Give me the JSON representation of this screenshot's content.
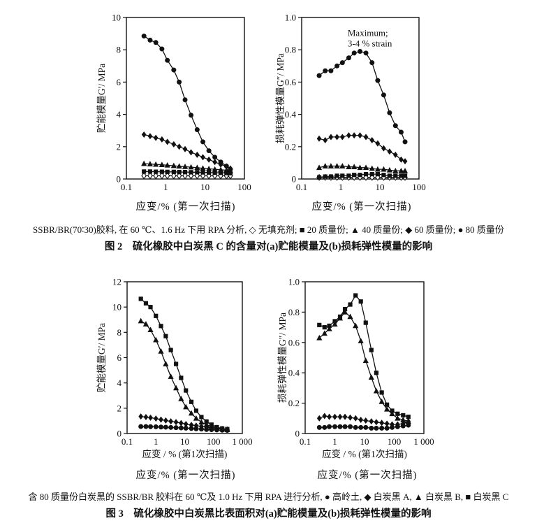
{
  "page": {
    "background": "#ffffff",
    "ink": "#111111"
  },
  "figure2": {
    "note": "SSBR/BR(70∶30)胶料, 在 60 ℃、1.6 Hz 下用 RPA 分析, ◇ 无填充剂;  ■ 20 质量份;  ▲ 40 质量份;  ◆ 60 质量份;  ● 80 质量份",
    "title": "图 2　硫化橡胶中白炭黑 C 的含量对(a)贮能模量及(b)损耗弹性模量的影响"
  },
  "figure3": {
    "note": "含 80 质量份白炭黑的 SSBR/BR 胶料在 60 ℃及 1.0 Hz 下用 RPA 进行分析, ● 高岭土, ◆ 白炭黑 A, ▲ 白炭黑 B, ■ 白炭黑 C",
    "title": "图 3　硫化橡胶中白炭黑比表面积对(a)贮能模量及(b)损耗弹性模量的影响"
  },
  "chart_data": [
    {
      "id": "fig2a",
      "type": "line",
      "xscale": "log",
      "ylabel": "贮能模量G′/ MPa",
      "xlabel": "应变/% (第一次扫描)",
      "xlim": [
        0.1,
        100
      ],
      "ylim": [
        0,
        10
      ],
      "xtick_values": [
        0.1,
        1,
        10,
        100
      ],
      "xtick_labels": [
        "0.1",
        "1",
        "10",
        "100"
      ],
      "ytick_values": [
        0,
        2,
        4,
        6,
        8,
        10
      ],
      "ytick_labels": [
        "0",
        "2",
        "4",
        "6",
        "8",
        "10"
      ],
      "grid": false,
      "x": [
        0.28,
        0.4,
        0.56,
        0.8,
        1.1,
        1.6,
        2.2,
        3.1,
        4.4,
        6.3,
        8.8,
        12.5,
        17.7,
        25,
        35,
        44
      ],
      "series": [
        {
          "name": "无填充剂",
          "marker": "open-diamond",
          "values": [
            0.2,
            0.2,
            0.2,
            0.2,
            0.2,
            0.2,
            0.2,
            0.2,
            0.2,
            0.2,
            0.2,
            0.2,
            0.2,
            0.2,
            0.2,
            0.2
          ]
        },
        {
          "name": "20质量份",
          "marker": "square",
          "values": [
            0.46,
            0.46,
            0.45,
            0.45,
            0.44,
            0.44,
            0.43,
            0.43,
            0.42,
            0.42,
            0.41,
            0.4,
            0.39,
            0.38,
            0.37,
            0.36
          ]
        },
        {
          "name": "40质量份",
          "marker": "triangle",
          "values": [
            0.95,
            0.93,
            0.9,
            0.88,
            0.85,
            0.82,
            0.79,
            0.76,
            0.73,
            0.7,
            0.66,
            0.63,
            0.6,
            0.57,
            0.54,
            0.5
          ]
        },
        {
          "name": "60质量份",
          "marker": "diamond",
          "values": [
            2.75,
            2.65,
            2.55,
            2.45,
            2.3,
            2.15,
            2.0,
            1.85,
            1.65,
            1.5,
            1.35,
            1.2,
            1.05,
            0.9,
            0.78,
            0.65
          ]
        },
        {
          "name": "80质量份",
          "marker": "circle",
          "values": [
            8.85,
            8.6,
            8.45,
            8.05,
            7.35,
            6.75,
            6.0,
            4.9,
            3.95,
            3.05,
            2.3,
            1.75,
            1.35,
            1.05,
            0.8,
            0.6
          ]
        }
      ]
    },
    {
      "id": "fig2b",
      "type": "line",
      "xscale": "log",
      "ylabel": "损耗弹性模量G″/ MPa",
      "xlabel": "应变/% (第一次扫描)",
      "annotation": {
        "x": 1.5,
        "y": 0.885,
        "lines": [
          "Maximum;",
          "3-4 % strain"
        ]
      },
      "xlim": [
        0.1,
        100
      ],
      "ylim": [
        0,
        1.0
      ],
      "xtick_values": [
        0.1,
        1,
        10,
        100
      ],
      "xtick_labels": [
        "0.1",
        "1",
        "10",
        "100"
      ],
      "ytick_values": [
        0,
        0.2,
        0.4,
        0.6,
        0.8,
        1.0
      ],
      "ytick_labels": [
        "0",
        "0.2",
        "0.4",
        "0.6",
        "0.8",
        "1.0"
      ],
      "grid": false,
      "x": [
        0.28,
        0.4,
        0.56,
        0.8,
        1.1,
        1.6,
        2.2,
        3.1,
        4.4,
        6.3,
        8.8,
        12.5,
        17.7,
        25,
        35,
        44
      ],
      "series": [
        {
          "name": "无填充剂",
          "marker": "open-diamond",
          "values": [
            0.01,
            0.01,
            0.01,
            0.01,
            0.01,
            0.01,
            0.01,
            0.01,
            0.01,
            0.01,
            0.01,
            0.01,
            0.01,
            0.01,
            0.01,
            0.01
          ]
        },
        {
          "name": "20质量份",
          "marker": "square",
          "values": [
            0.01,
            0.015,
            0.015,
            0.02,
            0.02,
            0.02,
            0.025,
            0.025,
            0.03,
            0.03,
            0.03,
            0.025,
            0.02,
            0.02,
            0.02,
            0.02
          ]
        },
        {
          "name": "40质量份",
          "marker": "triangle",
          "values": [
            0.07,
            0.08,
            0.08,
            0.08,
            0.08,
            0.075,
            0.075,
            0.07,
            0.07,
            0.065,
            0.06,
            0.06,
            0.055,
            0.05,
            0.05,
            0.05
          ]
        },
        {
          "name": "60质量份",
          "marker": "diamond",
          "values": [
            0.25,
            0.24,
            0.26,
            0.26,
            0.26,
            0.27,
            0.27,
            0.27,
            0.26,
            0.24,
            0.22,
            0.19,
            0.17,
            0.15,
            0.12,
            0.11
          ]
        },
        {
          "name": "80质量份",
          "marker": "circle",
          "values": [
            0.64,
            0.67,
            0.67,
            0.7,
            0.72,
            0.75,
            0.78,
            0.79,
            0.78,
            0.72,
            0.61,
            0.52,
            0.41,
            0.33,
            0.29,
            0.23
          ]
        }
      ]
    },
    {
      "id": "fig3a",
      "type": "line",
      "xscale": "log",
      "ylabel": "贮能模量G′/ MPa",
      "xlabel": "应变/% (第一次扫描)",
      "xlabel_inner": "应变 / % (第1次扫描)",
      "xlim": [
        0.1,
        1000
      ],
      "ylim": [
        0,
        12
      ],
      "xtick_values": [
        0.1,
        1,
        10,
        100,
        1000
      ],
      "xtick_labels": [
        "0.1",
        "1",
        "10",
        "100",
        "1 000"
      ],
      "ytick_values": [
        0,
        2,
        4,
        6,
        8,
        10,
        12
      ],
      "ytick_labels": [
        "0",
        "2",
        "4",
        "6",
        "8",
        "10",
        "12"
      ],
      "grid": false,
      "x": [
        0.3,
        0.45,
        0.65,
        1.0,
        1.5,
        2.2,
        3.3,
        5.0,
        7.5,
        11,
        17,
        25,
        38,
        57,
        85,
        130,
        200,
        300
      ],
      "series": [
        {
          "name": "高岭土",
          "marker": "circle",
          "values": [
            0.55,
            0.55,
            0.54,
            0.53,
            0.51,
            0.5,
            0.48,
            0.46,
            0.44,
            0.42,
            0.4,
            0.37,
            0.35,
            0.32,
            0.3,
            0.28,
            0.26,
            0.25
          ]
        },
        {
          "name": "白炭黑A",
          "marker": "diamond",
          "values": [
            1.35,
            1.3,
            1.25,
            1.18,
            1.1,
            1.03,
            0.96,
            0.9,
            0.82,
            0.75,
            0.68,
            0.62,
            0.56,
            0.5,
            0.45,
            0.4,
            0.35,
            0.32
          ]
        },
        {
          "name": "白炭黑B",
          "marker": "triangle",
          "values": [
            8.9,
            8.65,
            8.2,
            7.4,
            6.5,
            5.5,
            4.5,
            3.6,
            2.75,
            2.1,
            1.6,
            1.2,
            0.9,
            0.7,
            0.55,
            0.45,
            0.37,
            0.3
          ]
        },
        {
          "name": "白炭黑C",
          "marker": "square",
          "values": [
            10.65,
            10.3,
            10.0,
            9.3,
            8.5,
            7.7,
            6.6,
            5.5,
            4.4,
            3.4,
            2.5,
            1.8,
            1.3,
            0.95,
            0.7,
            0.5,
            0.4,
            0.35
          ]
        }
      ]
    },
    {
      "id": "fig3b",
      "type": "line",
      "xscale": "log",
      "ylabel": "损耗弹性模量G″/ MPa",
      "xlabel": "应变/% (第一次扫描)",
      "xlabel_inner": "应变 / % (第1次扫描)",
      "xlim": [
        0.1,
        1000
      ],
      "ylim": [
        0,
        1.0
      ],
      "xtick_values": [
        0.1,
        1,
        10,
        100,
        1000
      ],
      "xtick_labels": [
        "0.1",
        "1",
        "10",
        "100",
        "1 000"
      ],
      "ytick_values": [
        0,
        0.2,
        0.4,
        0.6,
        0.8,
        1.0
      ],
      "ytick_labels": [
        "0",
        "0.2",
        "0.4",
        "0.6",
        "0.8",
        "1.0"
      ],
      "grid": false,
      "x": [
        0.3,
        0.45,
        0.65,
        1.0,
        1.5,
        2.2,
        3.3,
        5.0,
        7.5,
        11,
        17,
        25,
        38,
        57,
        85,
        130,
        200,
        300
      ],
      "series": [
        {
          "name": "高岭土",
          "marker": "circle",
          "values": [
            0.04,
            0.04,
            0.045,
            0.045,
            0.045,
            0.045,
            0.045,
            0.04,
            0.04,
            0.04,
            0.035,
            0.035,
            0.035,
            0.035,
            0.04,
            0.045,
            0.05,
            0.055
          ]
        },
        {
          "name": "白炭黑A",
          "marker": "diamond",
          "values": [
            0.1,
            0.115,
            0.11,
            0.11,
            0.11,
            0.11,
            0.105,
            0.1,
            0.09,
            0.085,
            0.08,
            0.075,
            0.07,
            0.065,
            0.06,
            0.06,
            0.065,
            0.08
          ]
        },
        {
          "name": "白炭黑B",
          "marker": "triangle",
          "values": [
            0.63,
            0.66,
            0.69,
            0.72,
            0.76,
            0.8,
            0.77,
            0.71,
            0.61,
            0.48,
            0.37,
            0.28,
            0.21,
            0.16,
            0.13,
            0.1,
            0.09,
            0.08
          ]
        },
        {
          "name": "白炭黑C",
          "marker": "square",
          "values": [
            0.715,
            0.7,
            0.71,
            0.74,
            0.77,
            0.82,
            0.85,
            0.91,
            0.87,
            0.73,
            0.55,
            0.4,
            0.27,
            0.19,
            0.15,
            0.13,
            0.12,
            0.11
          ]
        }
      ]
    }
  ]
}
